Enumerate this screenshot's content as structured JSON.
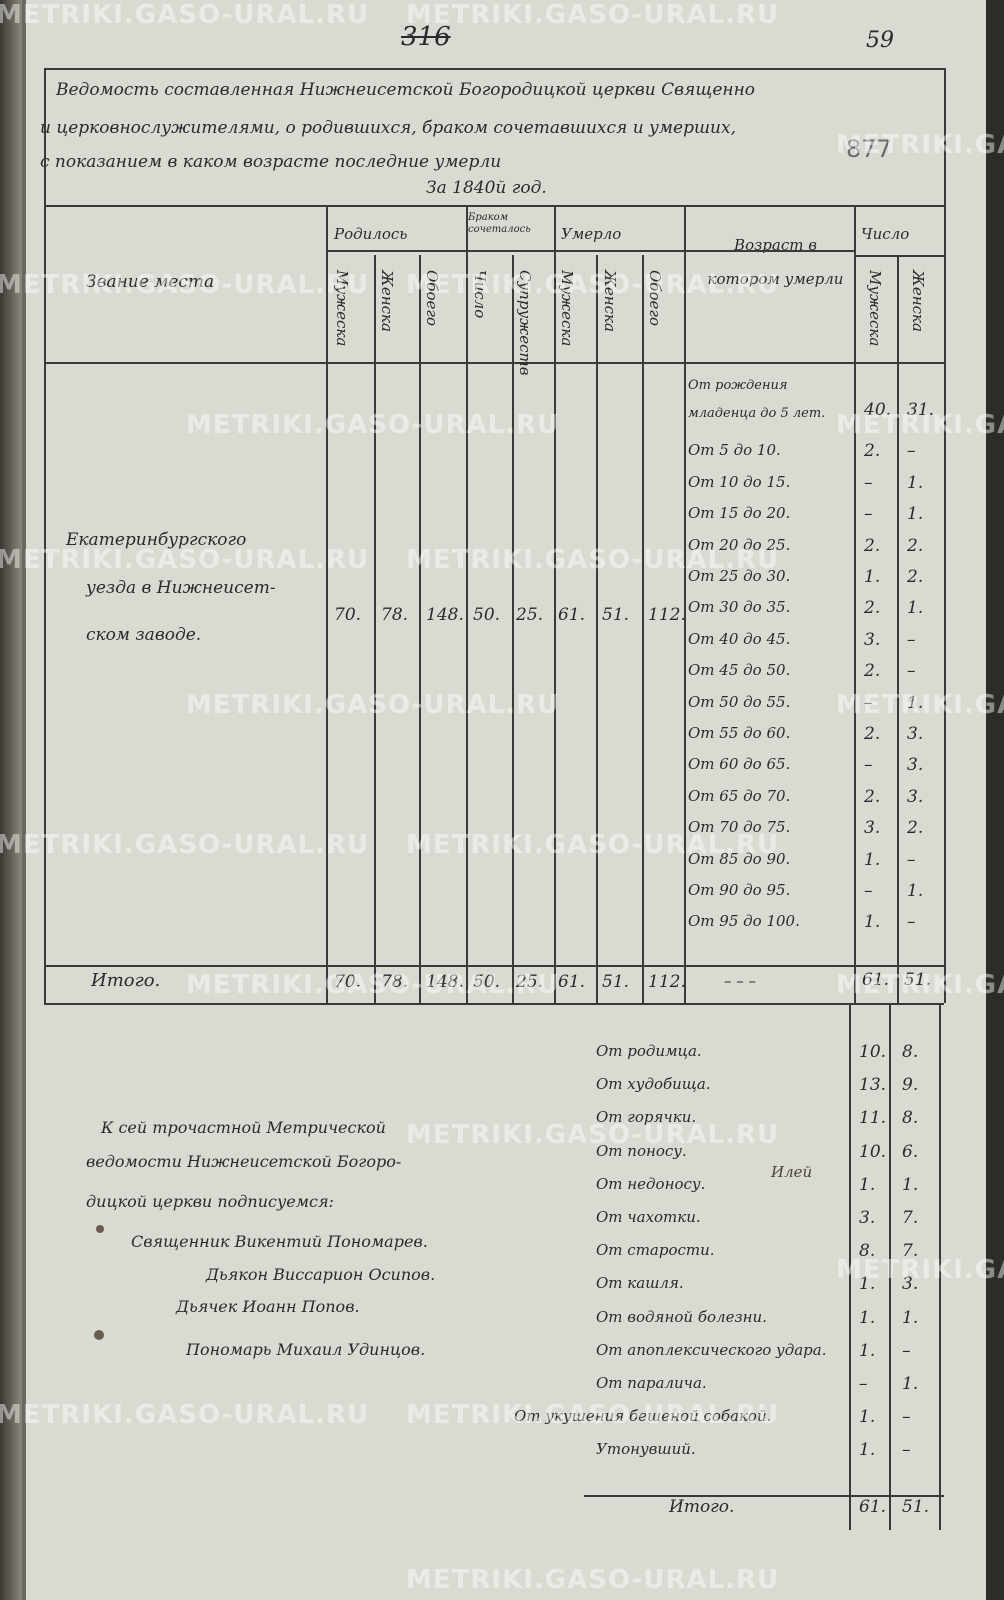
{
  "page_numbers": {
    "crossed": "316",
    "current": "59",
    "archive": "877"
  },
  "title": {
    "lines": [
      "Ведомость составленная Нижнеисетской Богородицкой церкви Священно",
      "и церковнослужителями, о родившихся, браком сочетавшихся и умерших,",
      "с показанием в каком возрасте последние умерли"
    ],
    "year": "За 1840й год."
  },
  "headers": {
    "place": "Звание места",
    "born": {
      "label": "Родилось",
      "cols": [
        "Мужеска",
        "Женска",
        "Обоего"
      ]
    },
    "married": {
      "label": "Браком сочеталось",
      "cols": [
        "Число",
        "Супружеств"
      ]
    },
    "died": {
      "label": "Умерло",
      "cols": [
        "Мужеска",
        "Женска",
        "Обоего"
      ]
    },
    "age": "Возраст в котором умерли",
    "count": {
      "label": "Число",
      "cols": [
        "Мужеска",
        "Женска"
      ]
    }
  },
  "row": {
    "place_lines": [
      "Екатеринбургского",
      "уезда в Нижнеисет-",
      "ском заводе."
    ],
    "values": [
      "70.",
      "78.",
      "148.",
      "50.",
      "25.",
      "61.",
      "51.",
      "112."
    ]
  },
  "ages": [
    {
      "label": "От рождения младенца до 5 лет.",
      "m": "40.",
      "f": "31."
    },
    {
      "label": "От 5 до 10.",
      "m": "2.",
      "f": "–"
    },
    {
      "label": "От 10 до 15.",
      "m": "–",
      "f": "1."
    },
    {
      "label": "От 15 до 20.",
      "m": "–",
      "f": "1."
    },
    {
      "label": "От 20 до 25.",
      "m": "2.",
      "f": "2."
    },
    {
      "label": "От 25 до 30.",
      "m": "1.",
      "f": "2."
    },
    {
      "label": "От 30 до 35.",
      "m": "2.",
      "f": "1."
    },
    {
      "label": "От 40 до 45.",
      "m": "3.",
      "f": "–"
    },
    {
      "label": "От 45 до 50.",
      "m": "2.",
      "f": "–"
    },
    {
      "label": "От 50 до 55.",
      "m": "–",
      "f": "1."
    },
    {
      "label": "От 55 до 60.",
      "m": "2.",
      "f": "3."
    },
    {
      "label": "От 60 до 65.",
      "m": "–",
      "f": "3."
    },
    {
      "label": "От 65 до 70.",
      "m": "2.",
      "f": "3."
    },
    {
      "label": "От 70 до 75.",
      "m": "3.",
      "f": "2."
    },
    {
      "label": "От 85 до 90.",
      "m": "1.",
      "f": "–"
    },
    {
      "label": "От 90 до 95.",
      "m": "–",
      "f": "1."
    },
    {
      "label": "От 95 до 100.",
      "m": "1.",
      "f": "–"
    }
  ],
  "totals": {
    "label": "Итого.",
    "values": [
      "70.",
      "78.",
      "148.",
      "50.",
      "25.",
      "61.",
      "51.",
      "112."
    ],
    "age_dash": "– – –",
    "m": "61.",
    "f": "51."
  },
  "causes": [
    {
      "label": "От родимца.",
      "m": "10.",
      "f": "8."
    },
    {
      "label": "От худобища.",
      "m": "13.",
      "f": "9."
    },
    {
      "label": "От горячки.",
      "m": "11.",
      "f": "8."
    },
    {
      "label": "От поносу.",
      "m": "10.",
      "f": "6."
    },
    {
      "label": "От недоносу.",
      "m": "1.",
      "f": "1."
    },
    {
      "label": "От чахотки.",
      "m": "3.",
      "f": "7."
    },
    {
      "label": "От старости.",
      "m": "8.",
      "f": "7."
    },
    {
      "label": "От кашля.",
      "m": "1.",
      "f": "3."
    },
    {
      "label": "От водяной болезни.",
      "m": "1.",
      "f": "1."
    },
    {
      "label": "От апоплексического удара.",
      "m": "1.",
      "f": "–"
    },
    {
      "label": "От паралича.",
      "m": "–",
      "f": "1."
    },
    {
      "label": "От укушения бешеной собакой.",
      "m": "1.",
      "f": "–"
    },
    {
      "label": "Утонувший.",
      "m": "1.",
      "f": "–"
    }
  ],
  "causes_note": "Илей",
  "causes_total": {
    "label": "Итого.",
    "m": "61.",
    "f": "51."
  },
  "signatures": {
    "intro": [
      "К сей трочастной Метрической",
      "ведомости Нижнеисетской Богоро-",
      "дицкой церкви подписуемся:"
    ],
    "names": [
      "Священник Викентий Пономарев.",
      "Дьякон Виссарион Осипов.",
      "Дьячек Иоанн Попов.",
      "Пономарь Михаил Удинцов."
    ]
  },
  "watermark": "METRIKI.GASO-URAL.RU"
}
